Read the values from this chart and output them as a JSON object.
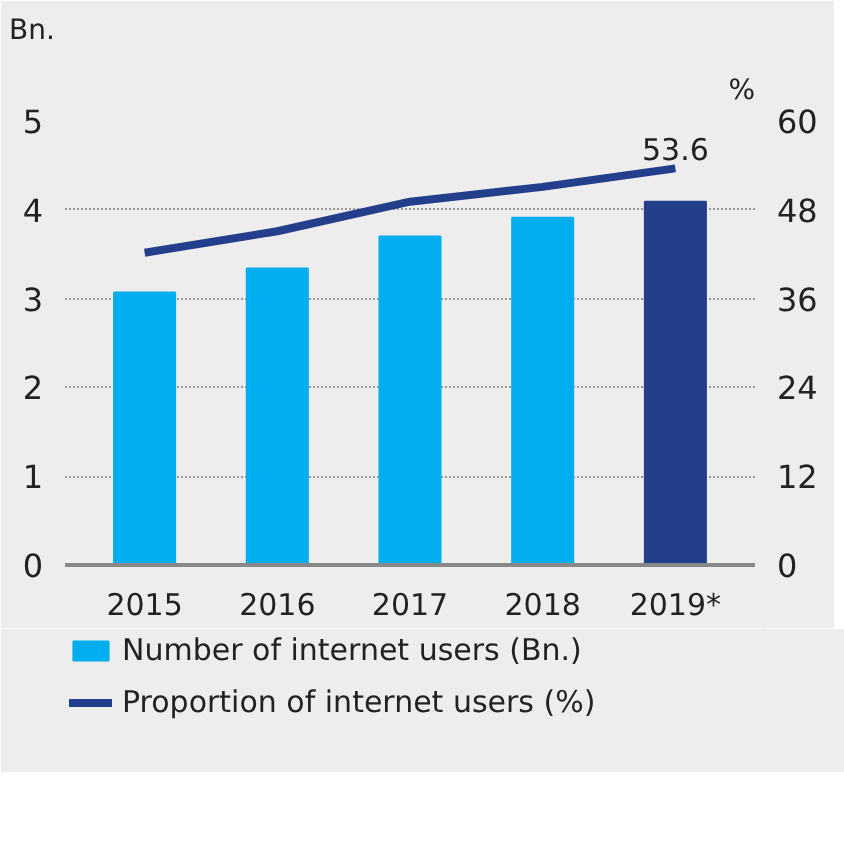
{
  "chart_data": {
    "type": "bar",
    "categories": [
      "2015",
      "2016",
      "2017",
      "2018",
      "2019*"
    ],
    "ylabel": "Bn.",
    "y2label": "%",
    "series": [
      {
        "name": "Number of internet users (Bn.)",
        "colors": [
          "#00aeef",
          "#00aeef",
          "#00aeef",
          "#00aeef",
          "#233e8b"
        ],
        "values": [
          3.07,
          3.34,
          3.7,
          3.91,
          4.09
        ]
      },
      {
        "name": "Proportion of internet users (%)",
        "type": "line",
        "axis": "y2",
        "color": "#233e8b",
        "values": [
          42.2,
          45.1,
          49.1,
          51.1,
          53.6
        ],
        "value_labels": [
          null,
          null,
          null,
          null,
          "53.6"
        ]
      }
    ],
    "ylim": [
      0,
      5
    ],
    "yticks": [
      0,
      1,
      2,
      3,
      4,
      5
    ],
    "y2lim": [
      0,
      60
    ],
    "y2ticks": [
      0,
      12,
      24,
      36,
      48,
      60
    ],
    "grid": "y",
    "legend": "bottom",
    "marker": "none",
    "line_style": "solid"
  }
}
